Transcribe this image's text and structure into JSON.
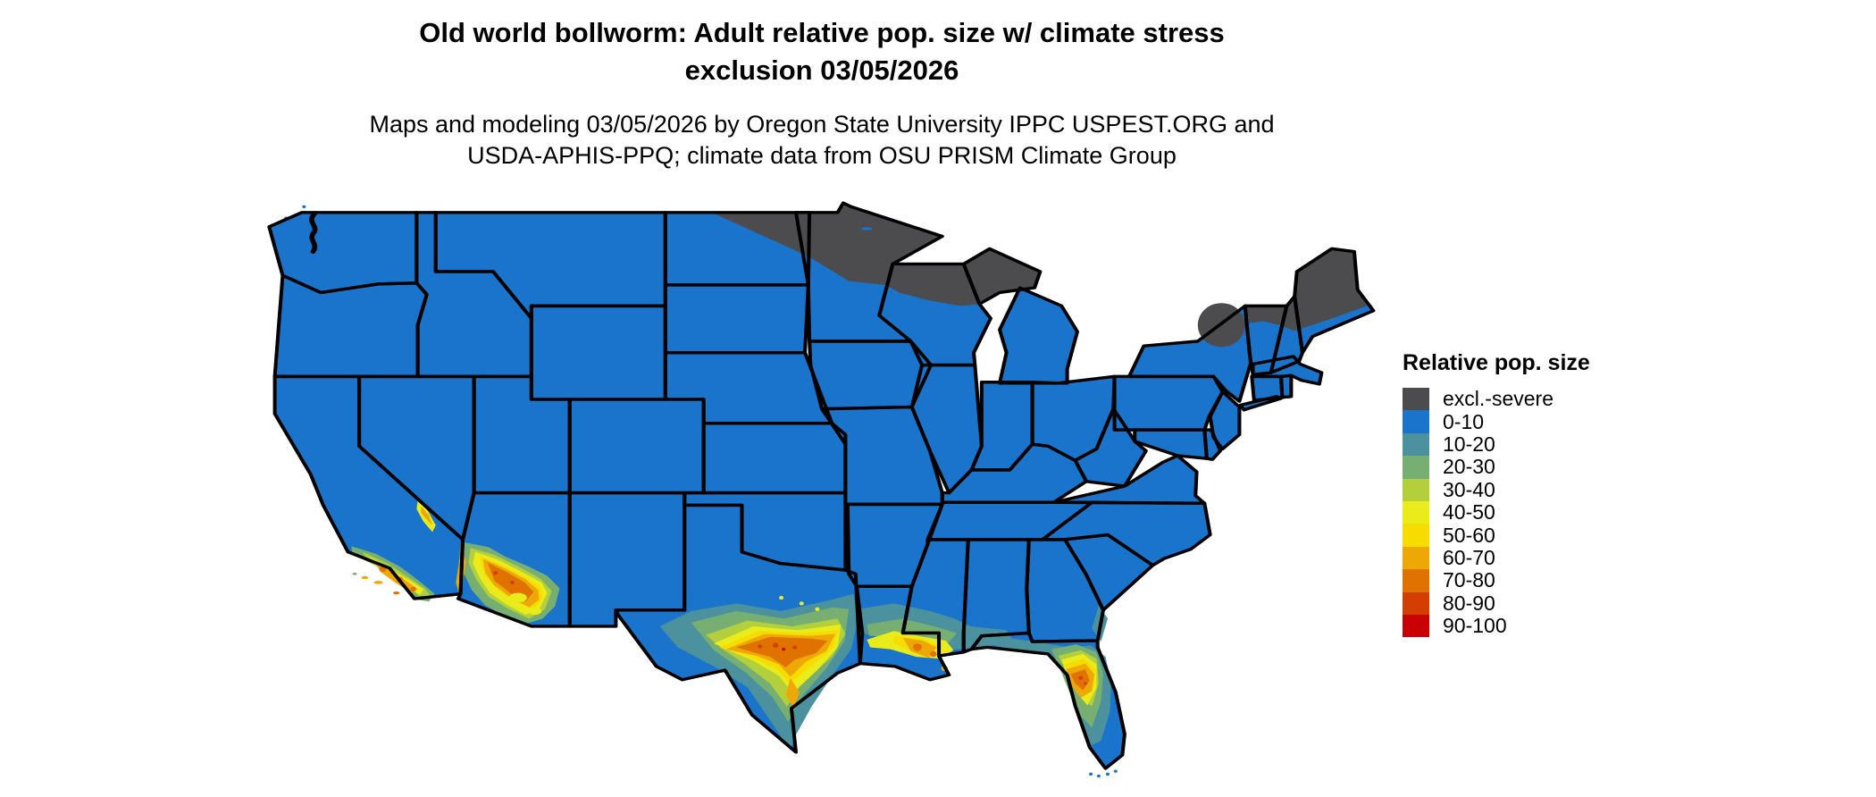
{
  "page": {
    "background": "#ffffff",
    "border_color": "#000000"
  },
  "header": {
    "title_line1": "Old world bollworm: Adult relative pop. size w/ climate stress",
    "title_line2": "exclusion 03/05/2026",
    "subtitle_line1": "Maps and modeling 03/05/2026 by Oregon State University IPPC USPEST.ORG and",
    "subtitle_line2": "USDA-APHIS-PPQ; climate data from OSU PRISM Climate Group"
  },
  "legend": {
    "title": "Relative pop. size",
    "items": [
      {
        "label": "excl.-severe",
        "color": "#4c4c4e"
      },
      {
        "label": "0-10",
        "color": "#1a74cb"
      },
      {
        "label": "10-20",
        "color": "#4b919e"
      },
      {
        "label": "20-30",
        "color": "#77af72"
      },
      {
        "label": "30-40",
        "color": "#b3d03c"
      },
      {
        "label": "40-50",
        "color": "#e9eb1b"
      },
      {
        "label": "50-60",
        "color": "#f7dc00"
      },
      {
        "label": "60-70",
        "color": "#eea806"
      },
      {
        "label": "70-80",
        "color": "#e07300"
      },
      {
        "label": "80-90",
        "color": "#d43e03"
      },
      {
        "label": "90-100",
        "color": "#c90105"
      }
    ]
  },
  "map": {
    "name": "Contiguous United States relative population size map",
    "shaded_regions": [
      {
        "category": "excl.-severe",
        "areas": "northeastern North Dakota, northern Minnesota, northern Wisconsin, upper Michigan, Adirondacks of New York, northern Vermont and New Hampshire, most of Maine"
      },
      {
        "category": "0-10",
        "areas": "most of the contiguous United States"
      },
      {
        "category": "10-90",
        "areas": "southern California coast and Channel Islands, southwestern Arizona, southern/central Texas band, Gulf Coast of Louisiana-Mississippi-Alabama, central Florida peninsula"
      }
    ]
  }
}
